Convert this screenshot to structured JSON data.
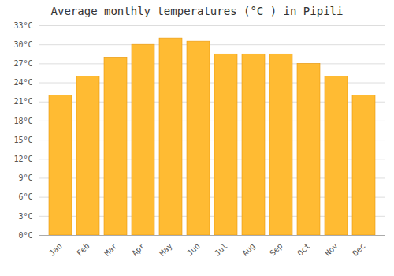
{
  "chart_data": {
    "type": "bar",
    "title": "Average monthly temperatures (°C ) in Pipili",
    "categories": [
      "Jan",
      "Feb",
      "Mar",
      "Apr",
      "May",
      "Jun",
      "Jul",
      "Aug",
      "Sep",
      "Oct",
      "Nov",
      "Dec"
    ],
    "values": [
      22,
      25,
      28,
      30,
      31,
      30.5,
      28.5,
      28.5,
      28.5,
      27,
      25,
      22
    ],
    "color": "#FFBB33",
    "ylim": [
      0,
      33
    ],
    "yticks": [
      {
        "value": 0,
        "label": "0°C"
      },
      {
        "value": 3,
        "label": "3°C"
      },
      {
        "value": 6,
        "label": "6°C"
      },
      {
        "value": 9,
        "label": "9°C"
      },
      {
        "value": 12,
        "label": "12°C"
      },
      {
        "value": 15,
        "label": "15°C"
      },
      {
        "value": 18,
        "label": "18°C"
      },
      {
        "value": 21,
        "label": "21°C"
      },
      {
        "value": 24,
        "label": "24°C"
      },
      {
        "value": 27,
        "label": "27°C"
      },
      {
        "value": 30,
        "label": "30°C"
      },
      {
        "value": 33,
        "label": "33°C"
      }
    ],
    "grid": true
  }
}
